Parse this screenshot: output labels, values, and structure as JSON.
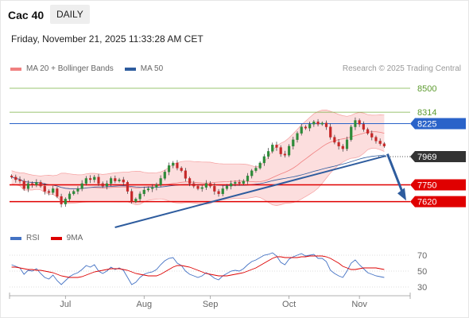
{
  "header": {
    "instrument": "Cac 40",
    "timeframe": "DAILY",
    "datetime": "Friday, November 21, 2025 11:33:28 AM CET",
    "copyright": "Research © 2025 Trading Central"
  },
  "legends": {
    "price": [
      {
        "label": "MA 20 + Bollinger Bands",
        "color": "#f08080"
      },
      {
        "label": "MA 50",
        "color": "#2e5c9e"
      }
    ],
    "rsi": [
      {
        "label": "RSI",
        "color": "#4472c4"
      },
      {
        "label": "9MA",
        "color": "#dd0000"
      }
    ]
  },
  "chart_data": [
    {
      "type": "candlestick",
      "x_labels": [
        "Jul",
        "Aug",
        "Sep",
        "Oct",
        "Nov"
      ],
      "ylim": [
        7420,
        8580
      ],
      "levels": [
        {
          "label": "8500",
          "value": 8500,
          "color": "#78b043",
          "style": "line-thin"
        },
        {
          "label": "8314",
          "value": 8314,
          "color": "#78b043",
          "style": "line-thin"
        },
        {
          "label": "8225",
          "value": 8225,
          "color": "#2a63c9",
          "style": "tag"
        },
        {
          "label": "7969",
          "value": 7969,
          "color": "#333333",
          "style": "tag-dotted"
        },
        {
          "label": "7750",
          "value": 7750,
          "color": "#e00000",
          "style": "tag"
        },
        {
          "label": "7620",
          "value": 7620,
          "color": "#e00000",
          "style": "tag"
        }
      ],
      "closes": [
        7810,
        7790,
        7780,
        7720,
        7760,
        7750,
        7770,
        7740,
        7700,
        7690,
        7720,
        7660,
        7600,
        7640,
        7680,
        7700,
        7720,
        7760,
        7800,
        7790,
        7810,
        7760,
        7740,
        7760,
        7800,
        7780,
        7790,
        7770,
        7700,
        7620,
        7640,
        7680,
        7710,
        7720,
        7730,
        7750,
        7800,
        7850,
        7900,
        7920,
        7880,
        7860,
        7800,
        7760,
        7740,
        7720,
        7730,
        7760,
        7740,
        7700,
        7680,
        7720,
        7740,
        7760,
        7770,
        7760,
        7780,
        7820,
        7860,
        7880,
        7920,
        7970,
        8010,
        8060,
        8040,
        7990,
        7980,
        8050,
        8100,
        8150,
        8200,
        8190,
        8220,
        8240,
        8220,
        8230,
        8200,
        8120,
        8080,
        8050,
        8030,
        8100,
        8200,
        8250,
        8220,
        8180,
        8150,
        8120,
        8090,
        8070,
        8050
      ]
    },
    {
      "type": "line",
      "name": "RSI panel",
      "y_ticks": [
        70,
        50,
        30
      ],
      "ylim": [
        25,
        75
      ],
      "series": [
        {
          "name": "RSI",
          "color": "#4472c4",
          "values": [
            58,
            56,
            54,
            46,
            51,
            50,
            53,
            47,
            42,
            40,
            45,
            38,
            33,
            38,
            43,
            46,
            48,
            52,
            57,
            55,
            58,
            50,
            47,
            50,
            55,
            52,
            54,
            51,
            42,
            33,
            36,
            42,
            46,
            48,
            49,
            52,
            58,
            63,
            66,
            67,
            60,
            57,
            50,
            46,
            44,
            42,
            44,
            48,
            45,
            41,
            39,
            44,
            47,
            50,
            51,
            50,
            53,
            58,
            62,
            64,
            67,
            70,
            71,
            73,
            69,
            61,
            58,
            65,
            68,
            70,
            72,
            69,
            70,
            71,
            66,
            66,
            62,
            51,
            47,
            44,
            42,
            50,
            60,
            64,
            58,
            53,
            48,
            46,
            44,
            43,
            42
          ]
        },
        {
          "name": "9MA",
          "color": "#dd0000",
          "values": [
            55,
            55,
            54,
            53,
            52,
            52,
            51,
            51,
            50,
            49,
            48,
            46,
            44,
            43,
            42,
            42,
            42,
            43,
            45,
            47,
            49,
            50,
            51,
            52,
            53,
            53,
            53,
            52,
            51,
            49,
            47,
            46,
            45,
            44,
            44,
            44,
            46,
            49,
            52,
            55,
            57,
            57,
            56,
            55,
            53,
            51,
            49,
            47,
            46,
            45,
            44,
            44,
            44,
            45,
            46,
            47,
            48,
            50,
            52,
            54,
            57,
            60,
            63,
            66,
            68,
            68,
            67,
            67,
            67,
            67,
            68,
            68,
            69,
            69,
            69,
            69,
            68,
            66,
            63,
            60,
            56,
            54,
            52,
            52,
            53,
            54,
            54,
            54,
            54,
            53,
            52
          ]
        }
      ]
    }
  ]
}
